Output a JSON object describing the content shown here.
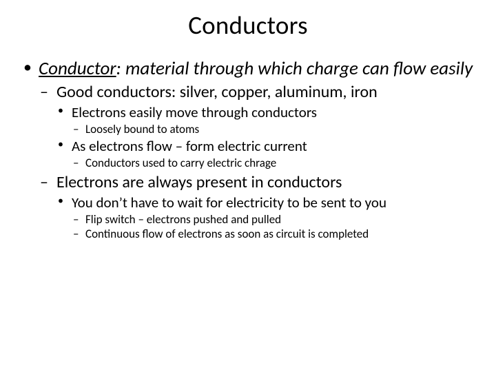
{
  "colors": {
    "background": "#ffffff",
    "text": "#000000"
  },
  "title": "Conductors",
  "bullets": {
    "l1_term": "Conductor",
    "l1_def": ":  material through which charge can flow easily",
    "l2a": "Good conductors:  silver, copper, aluminum, iron",
    "l3a": "Electrons easily move through conductors",
    "l4a": "Loosely bound to atoms",
    "l3b": "As electrons flow – form electric current",
    "l4b": "Conductors used to carry electric chrage",
    "l2b": "Electrons are always present in conductors",
    "l3c": "You don’t have to wait for electricity to be sent to you",
    "l4c": "Flip switch – electrons pushed and pulled",
    "l4d": "Continuous flow of electrons as soon as circuit is completed"
  }
}
